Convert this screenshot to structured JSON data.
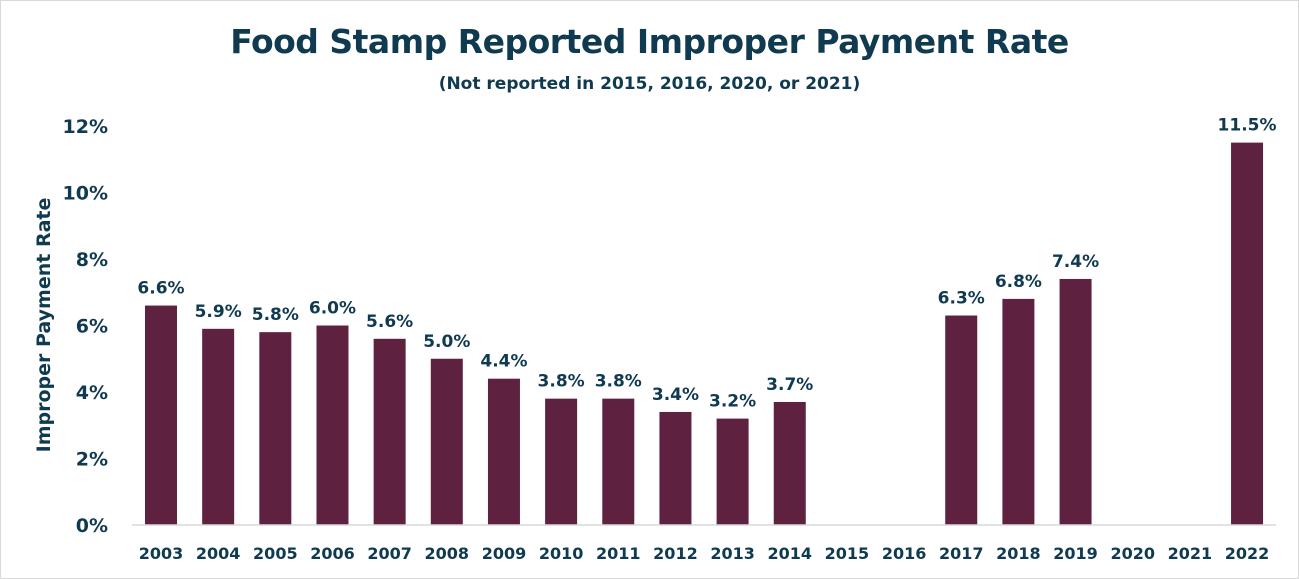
{
  "chart_data": {
    "type": "bar",
    "title": "Food Stamp Reported Improper Payment Rate",
    "subtitle": "(Not reported in 2015, 2016, 2020, or 2021)",
    "xlabel": "",
    "ylabel": "Improper Payment Rate",
    "ylim": [
      0,
      12
    ],
    "yticks": [
      "0%",
      "2%",
      "4%",
      "6%",
      "8%",
      "10%",
      "12%"
    ],
    "grid": false,
    "categories": [
      "2003",
      "2004",
      "2005",
      "2006",
      "2007",
      "2008",
      "2009",
      "2010",
      "2011",
      "2012",
      "2013",
      "2014",
      "2015",
      "2016",
      "2017",
      "2018",
      "2019",
      "2020",
      "2021",
      "2022"
    ],
    "values": [
      6.6,
      5.9,
      5.8,
      6.0,
      5.6,
      5.0,
      4.4,
      3.8,
      3.8,
      3.4,
      3.2,
      3.7,
      null,
      null,
      6.3,
      6.8,
      7.4,
      null,
      null,
      11.5
    ],
    "data_labels": [
      "6.6%",
      "5.9%",
      "5.8%",
      "6.0%",
      "5.6%",
      "5.0%",
      "4.4%",
      "3.8%",
      "3.8%",
      "3.4%",
      "3.2%",
      "3.7%",
      "",
      "",
      "6.3%",
      "6.8%",
      "7.4%",
      "",
      "",
      "11.5%"
    ],
    "colors": {
      "bar": "#5e2140",
      "text": "#0f3a4f",
      "axis": "#d9d9d9"
    }
  }
}
